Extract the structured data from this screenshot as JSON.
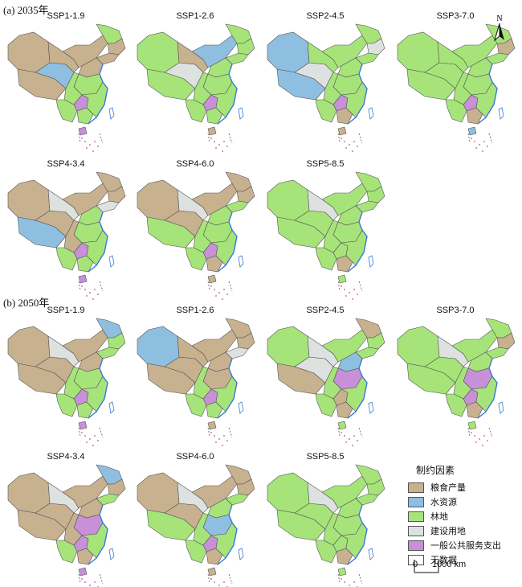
{
  "sections": [
    {
      "title": "(a) 2035年",
      "panels": [
        {
          "label": "SSP1-1.9",
          "regions": {
            "xinjiang": "food",
            "tibet": "food",
            "qinghai": "water",
            "neimeng": "food",
            "gansu": "food",
            "heilongjiang": "forest",
            "jilin": "food",
            "liaoning": "food",
            "north_china": "food",
            "central": "forest",
            "sichuan": "forest",
            "yunnan": "forest",
            "guangxi": "forest",
            "guizhou": "public",
            "southeast": "forest",
            "hainan": "public"
          }
        },
        {
          "label": "SSP1-2.6",
          "regions": {
            "xinjiang": "forest",
            "tibet": "forest",
            "qinghai": "construction",
            "neimeng": "water",
            "gansu": "food",
            "heilongjiang": "forest",
            "jilin": "forest",
            "liaoning": "forest",
            "north_china": "forest",
            "central": "forest",
            "sichuan": "forest",
            "yunnan": "forest",
            "guangxi": "forest",
            "guizhou": "public",
            "southeast": "forest",
            "hainan": "food"
          }
        },
        {
          "label": "SSP2-4.5",
          "regions": {
            "xinjiang": "water",
            "tibet": "water",
            "qinghai": "construction",
            "neimeng": "forest",
            "gansu": "forest",
            "heilongjiang": "forest",
            "jilin": "construction",
            "liaoning": "forest",
            "north_china": "forest",
            "central": "forest",
            "sichuan": "forest",
            "yunnan": "forest",
            "guangxi": "food",
            "guizhou": "public",
            "southeast": "forest",
            "hainan": "food"
          }
        },
        {
          "label": "SSP3-7.0",
          "regions": {
            "xinjiang": "forest",
            "tibet": "forest",
            "qinghai": "forest",
            "neimeng": "forest",
            "gansu": "forest",
            "heilongjiang": "forest",
            "jilin": "food",
            "liaoning": "forest",
            "north_china": "forest",
            "central": "forest",
            "sichuan": "forest",
            "yunnan": "forest",
            "guangxi": "food",
            "guizhou": "public",
            "southeast": "forest",
            "hainan": "water"
          }
        },
        {
          "label": "SSP4-3.4",
          "regions": {
            "xinjiang": "food",
            "tibet": "water",
            "qinghai": "food",
            "neimeng": "food",
            "gansu": "construction",
            "heilongjiang": "food",
            "jilin": "food",
            "liaoning": "construction",
            "north_china": "forest",
            "central": "forest",
            "sichuan": "food",
            "yunnan": "forest",
            "guangxi": "forest",
            "guizhou": "public",
            "southeast": "forest",
            "hainan": "public"
          }
        },
        {
          "label": "SSP4-6.0",
          "regions": {
            "xinjiang": "food",
            "tibet": "forest",
            "qinghai": "food",
            "neimeng": "food",
            "gansu": "construction",
            "heilongjiang": "food",
            "jilin": "food",
            "liaoning": "forest",
            "north_china": "forest",
            "central": "forest",
            "sichuan": "forest",
            "yunnan": "forest",
            "guangxi": "food",
            "guizhou": "public",
            "southeast": "forest",
            "hainan": "food"
          }
        },
        {
          "label": "SSP5-8.5",
          "regions": {
            "xinjiang": "forest",
            "tibet": "forest",
            "qinghai": "forest",
            "neimeng": "forest",
            "gansu": "construction",
            "heilongjiang": "forest",
            "jilin": "forest",
            "liaoning": "forest",
            "north_china": "forest",
            "central": "forest",
            "sichuan": "forest",
            "yunnan": "forest",
            "guangxi": "food",
            "guizhou": "forest",
            "southeast": "forest",
            "hainan": "forest"
          }
        }
      ]
    },
    {
      "title": "(b) 2050年",
      "panels": [
        {
          "label": "SSP1-1.9",
          "regions": {
            "xinjiang": "food",
            "tibet": "food",
            "qinghai": "food",
            "neimeng": "food",
            "gansu": "construction",
            "heilongjiang": "water",
            "jilin": "forest",
            "liaoning": "forest",
            "north_china": "food",
            "central": "forest",
            "sichuan": "forest",
            "yunnan": "forest",
            "guangxi": "forest",
            "guizhou": "public",
            "southeast": "forest",
            "hainan": "public"
          }
        },
        {
          "label": "SSP1-2.6",
          "regions": {
            "xinjiang": "water",
            "tibet": "food",
            "qinghai": "food",
            "neimeng": "food",
            "gansu": "food",
            "heilongjiang": "food",
            "jilin": "food",
            "liaoning": "construction",
            "north_china": "food",
            "central": "food",
            "sichuan": "forest",
            "yunnan": "forest",
            "guangxi": "forest",
            "guizhou": "public",
            "southeast": "forest",
            "hainan": "food"
          }
        },
        {
          "label": "SSP2-4.5",
          "regions": {
            "xinjiang": "forest",
            "tibet": "food",
            "qinghai": "construction",
            "neimeng": "forest",
            "gansu": "construction",
            "heilongjiang": "food",
            "jilin": "forest",
            "liaoning": "forest",
            "north_china": "water",
            "central": "public",
            "sichuan": "forest",
            "yunnan": "forest",
            "guangxi": "food",
            "guizhou": "food",
            "southeast": "forest",
            "hainan": "forest"
          }
        },
        {
          "label": "SSP3-7.0",
          "regions": {
            "xinjiang": "forest",
            "tibet": "forest",
            "qinghai": "forest",
            "neimeng": "forest",
            "gansu": "construction",
            "heilongjiang": "forest",
            "jilin": "food",
            "liaoning": "forest",
            "north_china": "forest",
            "central": "public",
            "sichuan": "forest",
            "yunnan": "forest",
            "guangxi": "food",
            "guizhou": "public",
            "southeast": "forest",
            "hainan": "forest"
          }
        },
        {
          "label": "SSP4-3.4",
          "regions": {
            "xinjiang": "food",
            "tibet": "food",
            "qinghai": "food",
            "neimeng": "food",
            "gansu": "construction",
            "heilongjiang": "water",
            "jilin": "food",
            "liaoning": "forest",
            "north_china": "food",
            "central": "public",
            "sichuan": "food",
            "yunnan": "forest",
            "guangxi": "food",
            "guizhou": "public",
            "southeast": "forest",
            "hainan": "public"
          }
        },
        {
          "label": "SSP4-6.0",
          "regions": {
            "xinjiang": "food",
            "tibet": "forest",
            "qinghai": "food",
            "neimeng": "food",
            "gansu": "construction",
            "heilongjiang": "food",
            "jilin": "food",
            "liaoning": "forest",
            "north_china": "forest",
            "central": "water",
            "sichuan": "forest",
            "yunnan": "forest",
            "guangxi": "food",
            "guizhou": "public",
            "southeast": "forest",
            "hainan": "food"
          }
        },
        {
          "label": "SSP5-8.5",
          "regions": {
            "xinjiang": "forest",
            "tibet": "forest",
            "qinghai": "forest",
            "neimeng": "forest",
            "gansu": "construction",
            "heilongjiang": "forest",
            "jilin": "forest",
            "liaoning": "forest",
            "north_china": "forest",
            "central": "forest",
            "sichuan": "forest",
            "yunnan": "forest",
            "guangxi": "food",
            "guizhou": "forest",
            "southeast": "forest",
            "hainan": "forest"
          }
        }
      ]
    }
  ],
  "legend": {
    "title": "制约因素",
    "items": [
      {
        "key": "food",
        "label": "粮食产量",
        "color": "#c8b18f"
      },
      {
        "key": "water",
        "label": "水资源",
        "color": "#8fbfe0"
      },
      {
        "key": "forest",
        "label": "林地",
        "color": "#a6e47a"
      },
      {
        "key": "construction",
        "label": "建设用地",
        "color": "#dde1e0"
      },
      {
        "key": "public",
        "label": "一般公共服务支出",
        "color": "#c790d8"
      },
      {
        "key": "none",
        "label": "无数据",
        "color": "#ffffff"
      }
    ]
  },
  "north_label": "N",
  "scale": {
    "zero": "0",
    "distance": "1000 km"
  },
  "colors": {
    "border": "#555555",
    "coast": "#3a78d8",
    "islands": "#c0509a"
  }
}
